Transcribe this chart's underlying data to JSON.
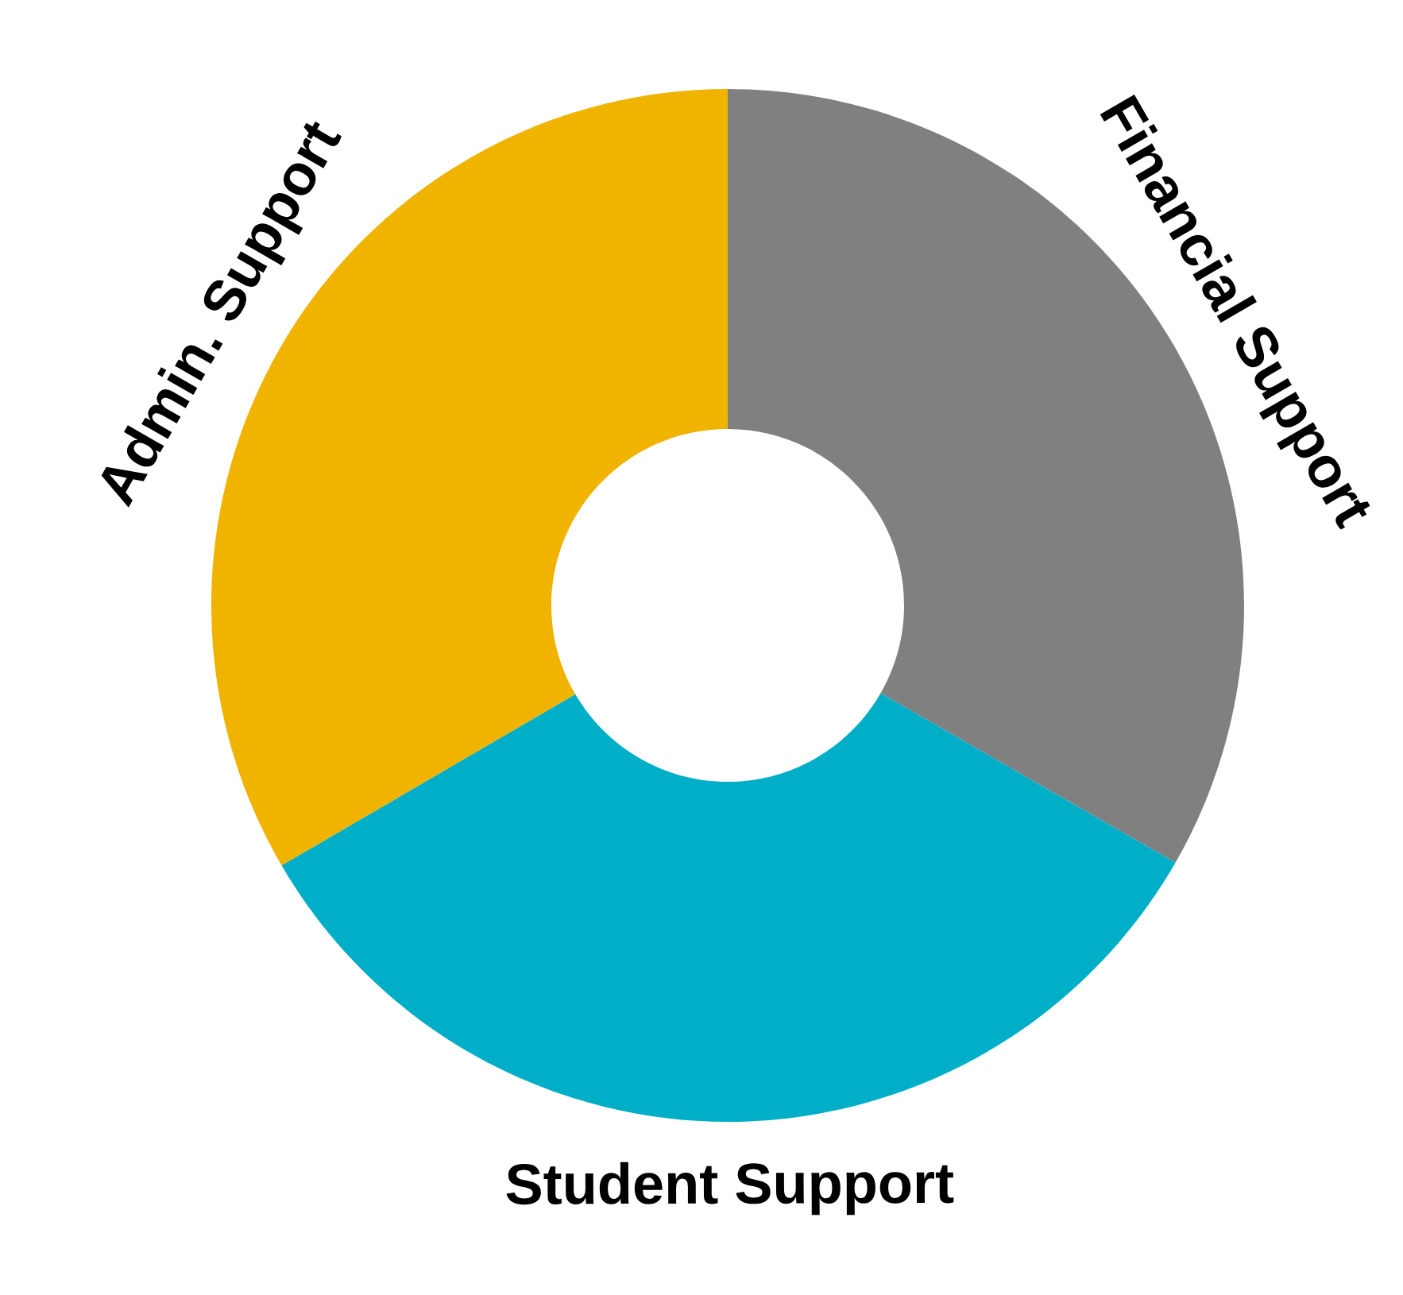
{
  "chart_data": {
    "type": "donut",
    "categories": [
      "Financial Support",
      "Student Support",
      "Admin. Support"
    ],
    "values": [
      33.3,
      33.3,
      33.4
    ],
    "colors": [
      "#808080",
      "#00aec7",
      "#f0b400"
    ],
    "legend": false
  }
}
